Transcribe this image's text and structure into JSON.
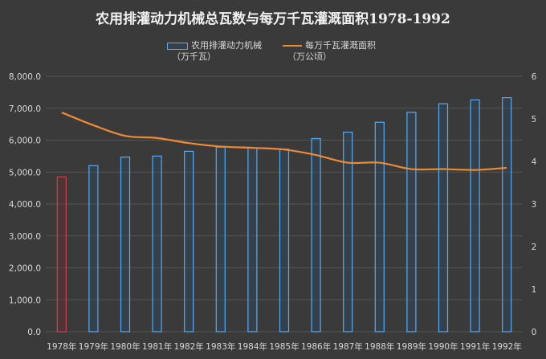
{
  "chart_data": {
    "type": "bar",
    "title": "农用排灌动力机械总瓦数与每万千瓦灌溉面积1978-1992",
    "categories": [
      "1978年",
      "1979年",
      "1980年",
      "1981年",
      "1982年",
      "1983年",
      "1984年",
      "1985年",
      "1986年",
      "1987年",
      "1988年",
      "1989年",
      "1990年",
      "1991年",
      "1992年"
    ],
    "series": [
      {
        "name": "农用排灌动力机械",
        "unit": "（万千瓦）",
        "type": "bar",
        "axis": "left",
        "values": [
          4850,
          5200,
          5470,
          5500,
          5650,
          5780,
          5750,
          5720,
          6050,
          6250,
          6560,
          6870,
          7140,
          7260,
          7330
        ]
      },
      {
        "name": "每万千瓦灌溉面积",
        "unit": "（万公顷）",
        "type": "line",
        "axis": "right",
        "values": [
          5.15,
          4.85,
          4.6,
          4.55,
          4.43,
          4.35,
          4.32,
          4.28,
          4.15,
          3.97,
          3.97,
          3.82,
          3.82,
          3.8,
          3.85
        ]
      }
    ],
    "y_left": {
      "min": 0,
      "max": 8000,
      "ticks": [
        "0.0",
        "1,000.0",
        "2,000.0",
        "3,000.0",
        "4,000.0",
        "5,000.0",
        "6,000.0",
        "7,000.0",
        "8,000.0"
      ]
    },
    "y_right": {
      "min": 0,
      "max": 6,
      "ticks": [
        "0",
        "1",
        "2",
        "3",
        "4",
        "5",
        "6"
      ]
    },
    "grid": true,
    "legend_position": "top-center",
    "highlight_index": 0,
    "colors": {
      "bar_outline": "#5aa9ef",
      "bar_highlight": "#c8434e",
      "line": "#ed8a36",
      "background": "#3a3a3a",
      "grid": "#555555",
      "text": "#d8d8d8"
    }
  }
}
